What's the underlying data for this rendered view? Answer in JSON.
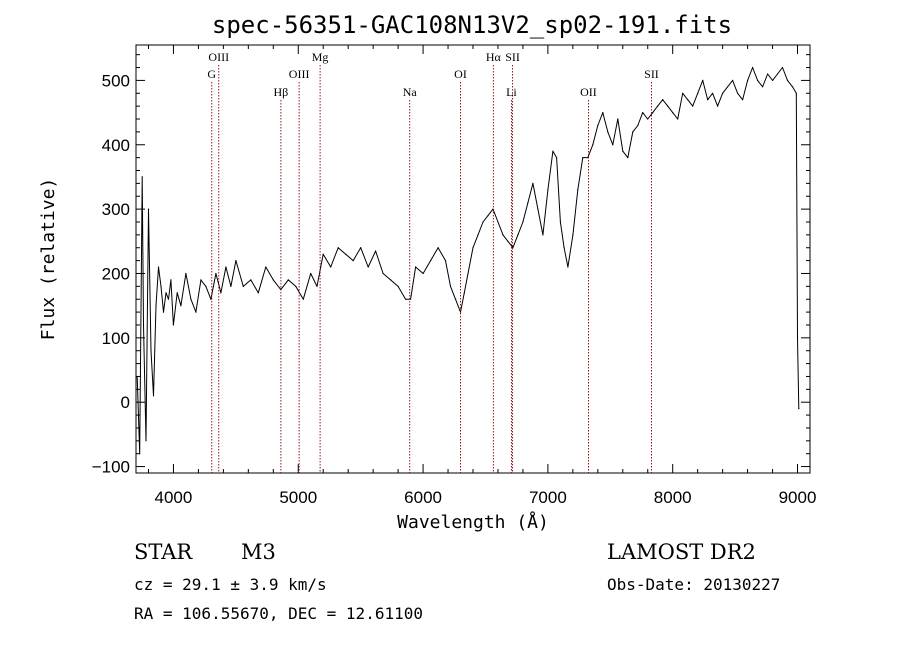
{
  "chart_data": {
    "type": "line",
    "title": "spec-56351-GAC108N13V2_sp02-191.fits",
    "xlabel": "Wavelength (Å)",
    "ylabel": "Flux (relative)",
    "xlim": [
      3700,
      9100
    ],
    "ylim": [
      -110,
      555
    ],
    "xticks": [
      4000,
      5000,
      6000,
      7000,
      8000,
      9000
    ],
    "xtick_labels": [
      "4000",
      "5000",
      "6000",
      "7000",
      "8000",
      "9000"
    ],
    "yticks": [
      -100,
      0,
      100,
      200,
      300,
      400,
      500
    ],
    "ytick_labels": [
      "−100",
      "0",
      "100",
      "200",
      "300",
      "400",
      "500"
    ],
    "grid": false,
    "line_color": "#000000",
    "marker_line_color": "#8b0000",
    "lines": [
      {
        "label": "OIII",
        "x": 4363,
        "row": 0
      },
      {
        "label": "G",
        "x": 4307,
        "row": 1
      },
      {
        "label": "Hβ",
        "x": 4861,
        "row": 2
      },
      {
        "label": "OIII",
        "x": 5007,
        "row": 1
      },
      {
        "label": "Mg",
        "x": 5175,
        "row": 0
      },
      {
        "label": "Na",
        "x": 5893,
        "row": 2
      },
      {
        "label": "OI",
        "x": 6300,
        "row": 1
      },
      {
        "label": "Hα",
        "x": 6563,
        "row": 0
      },
      {
        "label": "SII",
        "x": 6717,
        "row": 0
      },
      {
        "label": "Li",
        "x": 6708,
        "row": 2
      },
      {
        "label": "OII",
        "x": 7325,
        "row": 2
      },
      {
        "label": "SII",
        "x": 7830,
        "row": 1
      }
    ],
    "series": [
      {
        "x": [
          3710,
          3730,
          3750,
          3760,
          3780,
          3800,
          3820,
          3840,
          3860,
          3880,
          3900,
          3920,
          3940,
          3960,
          3980,
          4000,
          4030,
          4060,
          4100,
          4140,
          4180,
          4220,
          4260,
          4300,
          4340,
          4380,
          4420,
          4460,
          4500,
          4560,
          4620,
          4680,
          4740,
          4800,
          4860,
          4920,
          4980,
          5040,
          5100,
          5150,
          5200,
          5260,
          5320,
          5380,
          5440,
          5500,
          5560,
          5620,
          5680,
          5740,
          5800,
          5860,
          5900,
          5940,
          6000,
          6060,
          6120,
          6180,
          6220,
          6260,
          6300,
          6330,
          6360,
          6400,
          6440,
          6480,
          6520,
          6560,
          6600,
          6640,
          6680,
          6720,
          6760,
          6800,
          6840,
          6880,
          6920,
          6960,
          7000,
          7040,
          7070,
          7100,
          7130,
          7160,
          7200,
          7240,
          7280,
          7320,
          7360,
          7400,
          7440,
          7480,
          7520,
          7560,
          7600,
          7640,
          7680,
          7720,
          7760,
          7800,
          7840,
          7880,
          7920,
          7960,
          8000,
          8040,
          8080,
          8120,
          8160,
          8200,
          8240,
          8280,
          8320,
          8360,
          8400,
          8440,
          8480,
          8520,
          8560,
          8600,
          8640,
          8680,
          8720,
          8760,
          8800,
          8840,
          8880,
          8920,
          8960,
          8990,
          9000,
          9010
        ],
        "y": [
          40,
          -80,
          350,
          120,
          -60,
          300,
          80,
          10,
          150,
          210,
          180,
          140,
          170,
          160,
          190,
          120,
          170,
          150,
          200,
          160,
          140,
          190,
          180,
          160,
          200,
          170,
          210,
          180,
          220,
          180,
          190,
          170,
          210,
          190,
          175,
          190,
          180,
          160,
          200,
          180,
          230,
          210,
          240,
          230,
          220,
          240,
          210,
          235,
          200,
          190,
          180,
          160,
          160,
          210,
          200,
          220,
          240,
          220,
          180,
          160,
          140,
          170,
          200,
          240,
          260,
          280,
          290,
          300,
          280,
          260,
          250,
          240,
          260,
          280,
          310,
          340,
          300,
          260,
          330,
          390,
          380,
          280,
          240,
          210,
          260,
          330,
          380,
          380,
          400,
          430,
          450,
          420,
          400,
          440,
          390,
          380,
          420,
          430,
          450,
          440,
          450,
          460,
          470,
          460,
          450,
          440,
          480,
          470,
          460,
          480,
          500,
          470,
          480,
          460,
          480,
          490,
          500,
          480,
          470,
          500,
          520,
          500,
          490,
          510,
          500,
          510,
          520,
          500,
          490,
          480,
          100,
          -10
        ]
      }
    ]
  },
  "info": {
    "object_class": "STAR",
    "subclass": "M3",
    "survey": "LAMOST DR2",
    "cz": "cz = 29.1 ± 3.9 km/s",
    "obs_date": "Obs-Date: 20130227",
    "coords": "RA = 106.55670, DEC =  12.61100"
  }
}
